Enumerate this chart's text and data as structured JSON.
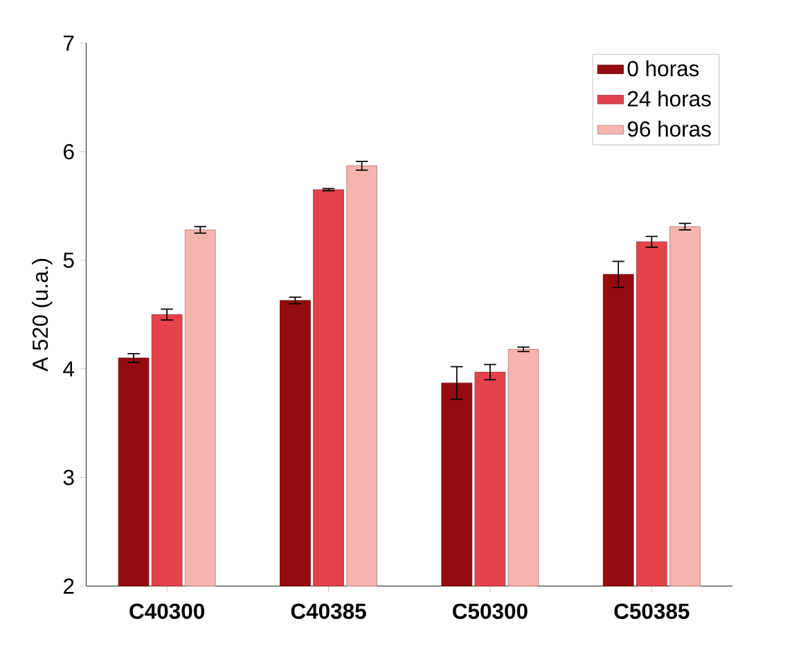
{
  "chart_data": {
    "type": "bar",
    "ylabel": "A 520 (u.a.)",
    "categories": [
      "C40300",
      "C40385",
      "C50300",
      "C50385"
    ],
    "series": [
      {
        "name": "0 horas",
        "color": "#960b0e",
        "values": [
          4.1,
          4.63,
          3.87,
          4.87
        ],
        "errors": [
          0.04,
          0.03,
          0.15,
          0.12
        ]
      },
      {
        "name": "24 horas",
        "color": "#e5434c",
        "values": [
          4.5,
          5.65,
          3.97,
          5.17
        ],
        "errors": [
          0.05,
          0.01,
          0.07,
          0.05
        ]
      },
      {
        "name": "96 horas",
        "color": "#f6b4b0",
        "values": [
          5.28,
          5.87,
          4.18,
          5.31
        ],
        "errors": [
          0.03,
          0.04,
          0.02,
          0.03
        ]
      }
    ],
    "ylim": [
      2,
      7
    ],
    "yticks": [
      2,
      3,
      4,
      5,
      6,
      7
    ],
    "legend": "top right"
  }
}
